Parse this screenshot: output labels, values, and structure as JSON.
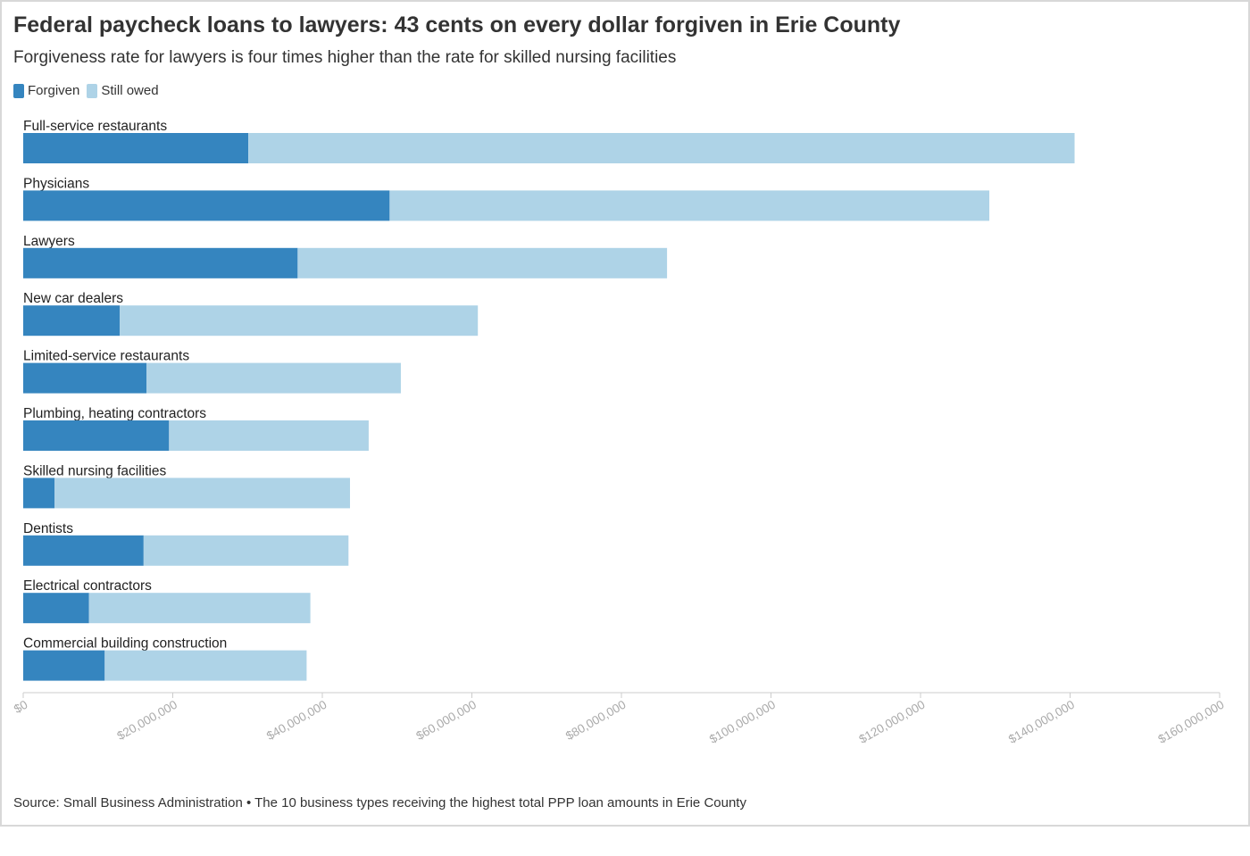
{
  "title": "Federal paycheck loans to lawyers: 43 cents on every dollar forgiven in Erie County",
  "subtitle": "Forgiveness rate for lawyers is four times higher than the rate for skilled nursing facilities",
  "legend": {
    "forgiven_label": "Forgiven",
    "owed_label": "Still owed"
  },
  "colors": {
    "forgiven": "#3585bf",
    "owed": "#aed3e7",
    "axis": "#cccccc",
    "tick_label": "#aaaaaa"
  },
  "source": "Source: Small Business Administration • The 10 business types receiving the highest total PPP loan amounts in Erie County",
  "chart_data": {
    "type": "bar",
    "orientation": "horizontal",
    "stacked": true,
    "categories": [
      "Full-service restaurants",
      "Physicians",
      "Lawyers",
      "New car dealers",
      "Limited-service restaurants",
      "Plumbing, heating contractors",
      "Skilled nursing facilities",
      "Dentists",
      "Electrical contractors",
      "Commercial building construction"
    ],
    "series": [
      {
        "name": "Forgiven",
        "values": [
          30100000,
          49000000,
          36700000,
          12900000,
          16500000,
          19500000,
          4200000,
          16100000,
          8800000,
          10900000
        ]
      },
      {
        "name": "Still owed",
        "values": [
          110500000,
          80200000,
          49400000,
          47900000,
          34000000,
          26700000,
          39500000,
          27400000,
          29600000,
          27000000
        ]
      }
    ],
    "xlim": [
      0,
      160000000
    ],
    "x_ticks": [
      0,
      20000000,
      40000000,
      60000000,
      80000000,
      100000000,
      120000000,
      140000000,
      160000000
    ],
    "x_tick_labels": [
      "$0",
      "$20,000,000",
      "$40,000,000",
      "$60,000,000",
      "$80,000,000",
      "$100,000,000",
      "$120,000,000",
      "$140,000,000",
      "$160,000,000"
    ],
    "grid": false,
    "legend_position": "top-left"
  }
}
